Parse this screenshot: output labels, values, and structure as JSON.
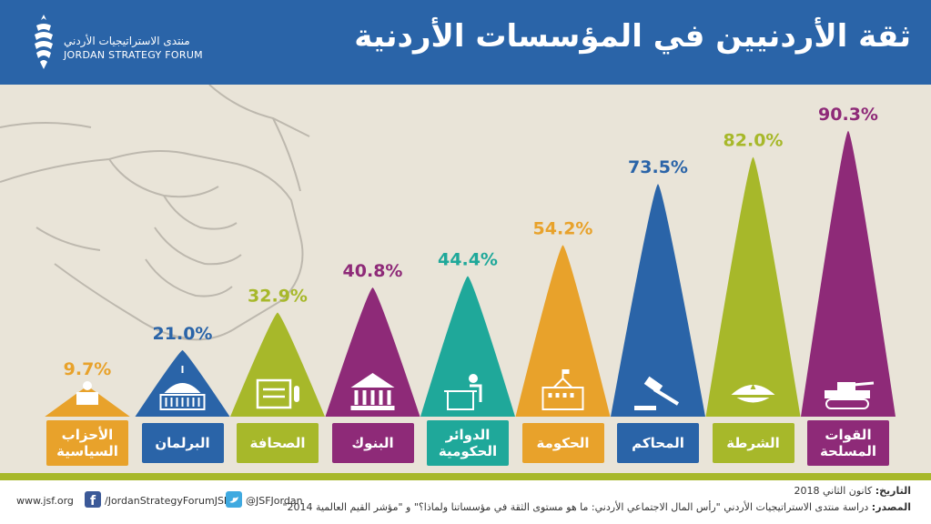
{
  "header": {
    "title": "ثقة الأردنيين في المؤسسات الأردنية",
    "logo_ar": "منتدى الاستراتيجيات الأردني",
    "logo_en": "JORDAN STRATEGY FORUM"
  },
  "chart_data": {
    "type": "bar",
    "categories": [
      "الأحزاب السياسية",
      "البرلمان",
      "الصحافة",
      "البنوك",
      "الدوائر الحكومية",
      "الحكومة",
      "المحاكم",
      "الشرطة",
      "القوات المسلحة"
    ],
    "values": [
      9.7,
      21.0,
      32.9,
      40.8,
      44.4,
      54.2,
      73.5,
      82.0,
      90.3
    ],
    "value_labels": [
      "9.7%",
      "21.0%",
      "32.9%",
      "40.8%",
      "44.4%",
      "54.2%",
      "73.5%",
      "82.0%",
      "90.3%"
    ],
    "ylim": [
      0,
      100
    ],
    "colors": [
      "#e8a22b",
      "#2a64a8",
      "#a7b82a",
      "#8e2a78",
      "#1fa89a",
      "#e8a22b",
      "#2a64a8",
      "#a7b82a",
      "#8e2a78"
    ],
    "icons": [
      "speaker-podium-icon",
      "parliament-building-icon",
      "newspaper-icon",
      "bank-building-icon",
      "office-worker-icon",
      "government-building-icon",
      "gavel-icon",
      "police-cap-icon",
      "tank-icon"
    ]
  },
  "footer": {
    "website": "www.jsf.org",
    "facebook": "/JordanStrategyForumJSF",
    "twitter": "@JSFJordan",
    "date_label": "التاريخ:",
    "date_value": "كانون الثاني 2018",
    "source_label": "المصدر:",
    "source_value": "دراسة منتدى الاستراتيجيات الأردني \"رأس المال الاجتماعي الأردني: ما هو مستوى الثقة في مؤسساتنا ولماذا؟\" و \"مؤشر القيم العالمية 2014\""
  }
}
